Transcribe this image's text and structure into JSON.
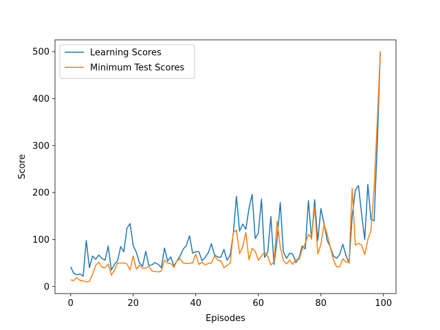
{
  "chart_data": {
    "type": "line",
    "title": "",
    "xlabel": "Episodes",
    "ylabel": "Score",
    "xlim": [
      -5,
      104
    ],
    "ylim": [
      -15,
      525
    ],
    "xticks": [
      0,
      20,
      40,
      60,
      80,
      100
    ],
    "yticks": [
      0,
      100,
      200,
      300,
      400,
      500
    ],
    "grid": false,
    "legend_position": "upper-left",
    "x": [
      0,
      1,
      2,
      3,
      4,
      5,
      6,
      7,
      8,
      9,
      10,
      11,
      12,
      13,
      14,
      15,
      16,
      17,
      18,
      19,
      20,
      21,
      22,
      23,
      24,
      25,
      26,
      27,
      28,
      29,
      30,
      31,
      32,
      33,
      34,
      35,
      36,
      37,
      38,
      39,
      40,
      41,
      42,
      43,
      44,
      45,
      46,
      47,
      48,
      49,
      50,
      51,
      52,
      53,
      54,
      55,
      56,
      57,
      58,
      59,
      60,
      61,
      62,
      63,
      64,
      65,
      66,
      67,
      68,
      69,
      70,
      71,
      72,
      73,
      74,
      75,
      76,
      77,
      78,
      79,
      80,
      81,
      82,
      83,
      84,
      85,
      86,
      87,
      88,
      89,
      90,
      91,
      92,
      93,
      94,
      95,
      96,
      97,
      98,
      99
    ],
    "series": [
      {
        "name": "Learning Scores",
        "color": "#1f77b4",
        "values": [
          42,
          28,
          25,
          27,
          22,
          98,
          40,
          65,
          58,
          67,
          60,
          56,
          86,
          35,
          47,
          55,
          85,
          74,
          124,
          134,
          87,
          73,
          50,
          43,
          75,
          45,
          46,
          51,
          47,
          40,
          82,
          54,
          63,
          44,
          55,
          65,
          80,
          87,
          108,
          71,
          74,
          74,
          55,
          62,
          72,
          91,
          67,
          63,
          62,
          79,
          56,
          67,
          113,
          192,
          118,
          133,
          122,
          166,
          196,
          102,
          114,
          186,
          62,
          73,
          149,
          47,
          100,
          179,
          74,
          60,
          71,
          69,
          51,
          61,
          86,
          80,
          183,
          101,
          185,
          98,
          166,
          134,
          98,
          84,
          65,
          60,
          68,
          90,
          66,
          50,
          150,
          205,
          215,
          155,
          100,
          217,
          143,
          140,
          300,
          501
        ]
      },
      {
        "name": "Minimum Test Scores",
        "color": "#ff7f0e",
        "values": [
          14,
          13,
          19,
          13,
          12,
          10,
          11,
          26,
          45,
          52,
          41,
          40,
          48,
          24,
          34,
          50,
          50,
          50,
          48,
          35,
          65,
          37,
          45,
          39,
          39,
          43,
          33,
          32,
          31,
          33,
          56,
          50,
          49,
          41,
          55,
          59,
          50,
          49,
          49,
          51,
          69,
          47,
          52,
          46,
          49,
          50,
          65,
          56,
          55,
          40,
          45,
          50,
          115,
          120,
          70,
          85,
          115,
          57,
          81,
          75,
          56,
          65,
          73,
          64,
          46,
          52,
          139,
          84,
          56,
          48,
          56,
          47,
          58,
          57,
          79,
          92,
          111,
          103,
          170,
          69,
          90,
          132,
          111,
          83,
          57,
          42,
          42,
          59,
          52,
          52,
          209,
          88,
          92,
          88,
          68,
          100,
          120,
          210,
          350,
          501
        ]
      }
    ]
  }
}
